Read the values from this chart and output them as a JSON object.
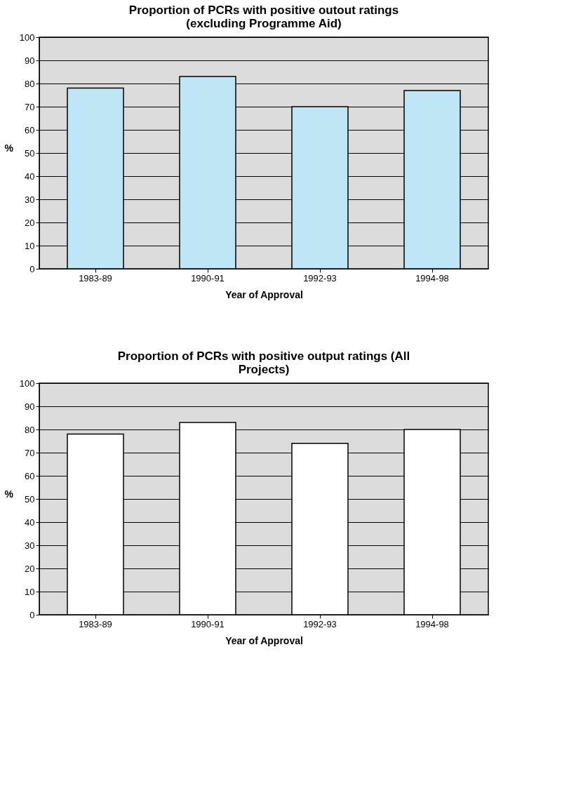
{
  "chart_data": [
    {
      "type": "bar",
      "title": "Proportion of PCRs with positive outout ratings (excluding Programme Aid)",
      "xlabel": "Year of Approval",
      "ylabel": "%",
      "categories": [
        "1983-89",
        "1990-91",
        "1992-93",
        "1994-98"
      ],
      "values": [
        78,
        83,
        70,
        77
      ],
      "color": "#bfe6f5",
      "ylim": [
        0,
        100
      ],
      "yticks": [
        0,
        10,
        20,
        30,
        40,
        50,
        60,
        70,
        80,
        90,
        100
      ],
      "grid": "y"
    },
    {
      "type": "bar",
      "title": "Proportion of PCRs with positive output ratings (All Projects)",
      "xlabel": "Year of Approval",
      "ylabel": "%",
      "categories": [
        "1983-89",
        "1990-91",
        "1992-93",
        "1994-98"
      ],
      "values": [
        78,
        83,
        74,
        80
      ],
      "color": "#ffffff",
      "ylim": [
        0,
        100
      ],
      "yticks": [
        0,
        10,
        20,
        30,
        40,
        50,
        60,
        70,
        80,
        90,
        100
      ],
      "grid": "y"
    }
  ]
}
